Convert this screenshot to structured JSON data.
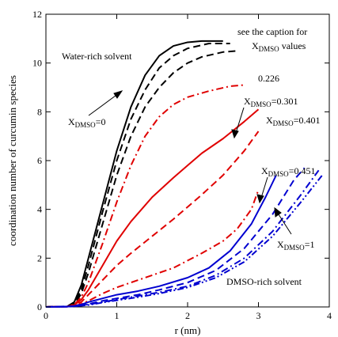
{
  "chart_data": {
    "type": "line",
    "xlabel": "r (nm)",
    "ylabel": "coordination number of curcumin species",
    "xlim": [
      0,
      4
    ],
    "ylim": [
      0,
      12
    ],
    "xticks": [
      "0",
      "1",
      "2",
      "3",
      "4"
    ],
    "yticks": [
      "0",
      "2",
      "4",
      "6",
      "8",
      "10",
      "12"
    ],
    "grid": false,
    "legend": "none",
    "colors": {
      "black": "#000000",
      "red": "#e00000",
      "blue": "#0000d0"
    },
    "series": [
      {
        "color": "black",
        "dash": "solid",
        "x": [
          0,
          0.3,
          0.4,
          0.5,
          0.6,
          0.8,
          1.0,
          1.2,
          1.4,
          1.6,
          1.8,
          2.0,
          2.2,
          2.5
        ],
        "y": [
          0,
          0.02,
          0.2,
          0.9,
          2.0,
          4.2,
          6.4,
          8.2,
          9.5,
          10.3,
          10.7,
          10.85,
          10.9,
          10.9
        ]
      },
      {
        "color": "black",
        "dash": "long",
        "x": [
          0,
          0.3,
          0.4,
          0.5,
          0.6,
          0.8,
          1.0,
          1.2,
          1.4,
          1.6,
          1.8,
          2.0,
          2.3,
          2.6
        ],
        "y": [
          0,
          0.02,
          0.15,
          0.7,
          1.7,
          3.9,
          6.0,
          7.7,
          8.9,
          9.8,
          10.3,
          10.6,
          10.8,
          10.8
        ]
      },
      {
        "color": "black",
        "dash": "long",
        "x": [
          0,
          0.3,
          0.4,
          0.5,
          0.6,
          0.8,
          1.0,
          1.2,
          1.4,
          1.6,
          1.8,
          2.0,
          2.2,
          2.5,
          2.7
        ],
        "y": [
          0,
          0.02,
          0.1,
          0.55,
          1.4,
          3.4,
          5.4,
          7.0,
          8.2,
          9.0,
          9.6,
          10.0,
          10.25,
          10.45,
          10.5
        ]
      },
      {
        "color": "red",
        "dash": "dashdot",
        "x": [
          0,
          0.3,
          0.4,
          0.5,
          0.6,
          0.8,
          1.0,
          1.2,
          1.4,
          1.6,
          1.8,
          2.0,
          2.3,
          2.6,
          2.8
        ],
        "y": [
          0,
          0.02,
          0.1,
          0.4,
          1.0,
          2.6,
          4.3,
          5.8,
          7.0,
          7.8,
          8.3,
          8.6,
          8.85,
          9.05,
          9.1
        ]
      },
      {
        "color": "red",
        "dash": "solid",
        "x": [
          0,
          0.3,
          0.4,
          0.5,
          0.6,
          0.8,
          1.0,
          1.2,
          1.5,
          1.8,
          2.0,
          2.2,
          2.5,
          2.8,
          3.0
        ],
        "y": [
          0,
          0.02,
          0.08,
          0.3,
          0.7,
          1.7,
          2.7,
          3.5,
          4.5,
          5.3,
          5.8,
          6.3,
          6.9,
          7.6,
          8.1
        ]
      },
      {
        "color": "red",
        "dash": "long",
        "x": [
          0,
          0.3,
          0.4,
          0.5,
          0.6,
          0.8,
          1.0,
          1.2,
          1.5,
          1.8,
          2.0,
          2.2,
          2.5,
          2.8,
          3.0
        ],
        "y": [
          0,
          0.02,
          0.06,
          0.2,
          0.5,
          1.1,
          1.7,
          2.2,
          2.9,
          3.6,
          4.1,
          4.6,
          5.4,
          6.4,
          7.2
        ]
      },
      {
        "color": "red",
        "dash": "dashdot",
        "x": [
          0,
          0.3,
          0.4,
          0.5,
          0.6,
          0.8,
          1.0,
          1.2,
          1.5,
          1.8,
          2.0,
          2.2,
          2.5,
          2.7,
          2.9,
          3.0
        ],
        "y": [
          0,
          0.01,
          0.04,
          0.12,
          0.25,
          0.55,
          0.8,
          1.0,
          1.3,
          1.6,
          1.9,
          2.2,
          2.7,
          3.2,
          4.0,
          4.8
        ]
      },
      {
        "color": "blue",
        "dash": "solid",
        "x": [
          0,
          0.3,
          0.4,
          0.5,
          0.6,
          0.8,
          1.0,
          1.3,
          1.6,
          2.0,
          2.3,
          2.6,
          2.9,
          3.1,
          3.25
        ],
        "y": [
          0,
          0.01,
          0.04,
          0.1,
          0.2,
          0.35,
          0.5,
          0.65,
          0.85,
          1.2,
          1.6,
          2.3,
          3.4,
          4.5,
          5.4
        ]
      },
      {
        "color": "blue",
        "dash": "long",
        "x": [
          0,
          0.4,
          0.6,
          0.8,
          1.0,
          1.3,
          1.6,
          2.0,
          2.4,
          2.8,
          3.2,
          3.5,
          3.65
        ],
        "y": [
          0,
          0.03,
          0.12,
          0.25,
          0.35,
          0.5,
          0.7,
          1.0,
          1.5,
          2.4,
          3.8,
          5.2,
          5.7
        ]
      },
      {
        "color": "blue",
        "dash": "dashdot",
        "x": [
          0,
          0.4,
          0.6,
          0.8,
          1.0,
          1.3,
          1.6,
          2.0,
          2.4,
          2.8,
          3.2,
          3.6,
          3.85
        ],
        "y": [
          0,
          0.02,
          0.1,
          0.2,
          0.3,
          0.45,
          0.6,
          0.85,
          1.3,
          2.0,
          3.1,
          4.6,
          5.6
        ]
      },
      {
        "color": "blue",
        "dash": "dashdotdot",
        "x": [
          0,
          0.4,
          0.6,
          0.8,
          1.0,
          1.3,
          1.6,
          2.0,
          2.4,
          2.8,
          3.2,
          3.6,
          3.9
        ],
        "y": [
          0,
          0.02,
          0.08,
          0.18,
          0.27,
          0.4,
          0.55,
          0.8,
          1.2,
          1.85,
          2.9,
          4.3,
          5.4
        ]
      }
    ],
    "annotations": {
      "water_rich": "Water-rich solvent",
      "caption_line1": "see the caption for",
      "caption_x": "X",
      "caption_sub": "DMSO",
      "caption_values": " values",
      "x0_main": "X",
      "x0_sub": "DMSO",
      "x0_val": "=0",
      "v226": "0.226",
      "x301_main": "X",
      "x301_sub": "DMSO",
      "x301_val": "=0.301",
      "x401_main": "X",
      "x401_sub": "DMSO",
      "x401_val": "=0.401",
      "x451_main": "X",
      "x451_sub": "DMSO",
      "x451_val": "=0.451",
      "x1_main": "X",
      "x1_sub": "DMSO",
      "x1_val": "=1",
      "dmso_rich": "DMSO-rich solvent"
    }
  }
}
